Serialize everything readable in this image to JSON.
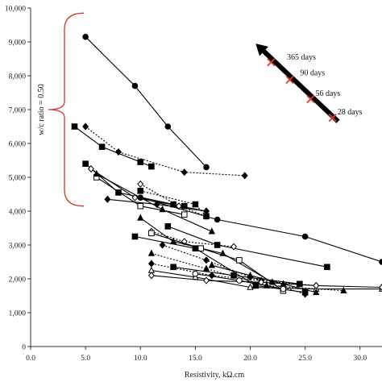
{
  "chart_data": {
    "type": "line",
    "xlabel": "Resistivity, kΩ.cm",
    "ylabel": "",
    "xlim": [
      0,
      32
    ],
    "ylim": [
      0,
      10000
    ],
    "x_ticks": [
      "0.0",
      "5.0",
      "10.0",
      "15.0",
      "20.0",
      "25.0",
      "30.0"
    ],
    "x_tick_values": [
      0,
      5,
      10,
      15,
      20,
      25,
      30
    ],
    "y_ticks": [
      "0",
      "1,000",
      "2,000",
      "3,000",
      "4,000",
      "5,000",
      "6,000",
      "7,000",
      "8,000",
      "9,000",
      "10,000"
    ],
    "y_tick_values": [
      0,
      1000,
      2000,
      3000,
      4000,
      5000,
      6000,
      7000,
      8000,
      9000,
      10000
    ],
    "grid": false,
    "brace_label": "w/c ratio = 0.50",
    "brace_range": [
      4150,
      9850
    ],
    "age_arrow": {
      "start": [
        28,
        6650
      ],
      "end": [
        20.5,
        8950
      ],
      "labels": [
        {
          "text": "365 days",
          "x": 22.9,
          "y": 8380
        },
        {
          "text": "90 days",
          "x": 24.1,
          "y": 7920
        },
        {
          "text": "56 days",
          "x": 25.5,
          "y": 7310
        },
        {
          "text": "28 days",
          "x": 27.5,
          "y": 6760
        }
      ],
      "markers": [
        {
          "x": 21.9,
          "y": 8400
        },
        {
          "x": 23.6,
          "y": 7880
        },
        {
          "x": 25.5,
          "y": 7310
        },
        {
          "x": 27.5,
          "y": 6760
        }
      ]
    },
    "series": [
      {
        "marker": "circle",
        "filled": true,
        "dash": false,
        "x": [
          5.0,
          9.5,
          12.5,
          16.0
        ],
        "y": [
          9150,
          7700,
          6500,
          5300
        ]
      },
      {
        "marker": "square",
        "filled": true,
        "dash": false,
        "x": [
          4.0,
          6.5,
          10.0,
          11.0
        ],
        "y": [
          6500,
          5900,
          5450,
          5320
        ]
      },
      {
        "marker": "diamond",
        "filled": true,
        "dash": true,
        "x": [
          5.0,
          8.0,
          14.0,
          19.5
        ],
        "y": [
          6500,
          5750,
          5150,
          5050
        ]
      },
      {
        "marker": "square",
        "filled": true,
        "dash": false,
        "x": [
          5.0,
          8.0,
          13.0,
          14.0
        ],
        "y": [
          5400,
          4550,
          4200,
          4150
        ]
      },
      {
        "marker": "diamond",
        "filled": false,
        "dash": false,
        "x": [
          5.5,
          9.5,
          16.0
        ],
        "y": [
          5250,
          4400,
          4000
        ]
      },
      {
        "marker": "square",
        "filled": false,
        "dash": false,
        "x": [
          6.0,
          10.0,
          14.0
        ],
        "y": [
          5000,
          4150,
          3900
        ]
      },
      {
        "marker": "triangle",
        "filled": true,
        "dash": false,
        "x": [
          6.0,
          12.0,
          16.5
        ],
        "y": [
          5100,
          4050,
          3400
        ]
      },
      {
        "marker": "diamond",
        "filled": true,
        "dash": false,
        "x": [
          7.0,
          11.5,
          16.0
        ],
        "y": [
          4350,
          4200,
          4000
        ]
      },
      {
        "marker": "diamond",
        "filled": false,
        "dash": true,
        "x": [
          10.0,
          13.5,
          16.0
        ],
        "y": [
          4800,
          4150,
          3850
        ]
      },
      {
        "marker": "square",
        "filled": true,
        "dash": true,
        "x": [
          10.0,
          15.0,
          16.0
        ],
        "y": [
          4600,
          4200,
          3850
        ]
      },
      {
        "marker": "circle",
        "filled": true,
        "dash": false,
        "x": [
          10.0,
          17.0,
          25.0,
          32.0
        ],
        "y": [
          4400,
          3750,
          3250,
          2500
        ]
      },
      {
        "marker": "triangle",
        "filled": true,
        "dash": false,
        "x": [
          10.0,
          13.0,
          17.5,
          22.0
        ],
        "y": [
          3800,
          3100,
          2750,
          1900
        ]
      },
      {
        "marker": "square",
        "filled": true,
        "dash": false,
        "x": [
          12.5,
          17.0,
          27.0
        ],
        "y": [
          3550,
          3000,
          2350
        ]
      },
      {
        "marker": "diamond",
        "filled": false,
        "dash": true,
        "x": [
          11.0,
          14.0,
          18.5
        ],
        "y": [
          3400,
          3100,
          2950
        ]
      },
      {
        "marker": "square",
        "filled": false,
        "dash": false,
        "x": [
          11.0,
          15.5,
          19.0,
          23.0
        ],
        "y": [
          3350,
          2900,
          2550,
          1650
        ]
      },
      {
        "marker": "diamond",
        "filled": true,
        "dash": true,
        "x": [
          12.0,
          16.0,
          20.0,
          25.0
        ],
        "y": [
          3000,
          2550,
          2050,
          1550
        ]
      },
      {
        "marker": "square",
        "filled": true,
        "dash": false,
        "x": [
          9.5,
          15.0,
          20.5,
          25.0
        ],
        "y": [
          3250,
          2900,
          1800,
          1600
        ]
      },
      {
        "marker": "triangle",
        "filled": true,
        "dash": true,
        "x": [
          11.0,
          16.0,
          21.5,
          28.5
        ],
        "y": [
          2750,
          2300,
          1800,
          1650
        ]
      },
      {
        "marker": "diamond",
        "filled": true,
        "dash": true,
        "x": [
          11.0,
          16.5,
          21.0,
          26.0
        ],
        "y": [
          2450,
          2100,
          1950,
          1800
        ]
      },
      {
        "marker": "triangle",
        "filled": false,
        "dash": false,
        "x": [
          11.0,
          15.0,
          20.0,
          26.0,
          32.0
        ],
        "y": [
          2250,
          2050,
          1750,
          1700,
          1700
        ]
      },
      {
        "marker": "diamond",
        "filled": false,
        "dash": false,
        "x": [
          11.0,
          16.0,
          21.0,
          26.0,
          32.0
        ],
        "y": [
          2100,
          1950,
          1900,
          1800,
          1750
        ]
      },
      {
        "marker": "square",
        "filled": true,
        "dash": false,
        "x": [
          13.0,
          18.5,
          24.5
        ],
        "y": [
          2350,
          2100,
          1850
        ]
      },
      {
        "marker": "circle",
        "filled": false,
        "dash": false,
        "x": [
          15.0,
          19.0,
          23.0
        ],
        "y": [
          2150,
          1950,
          1700
        ]
      },
      {
        "marker": "triangle",
        "filled": true,
        "dash": false,
        "x": [
          16.5,
          20.0,
          23.0,
          26.0
        ],
        "y": [
          2400,
          2100,
          1850,
          1600
        ]
      }
    ]
  }
}
